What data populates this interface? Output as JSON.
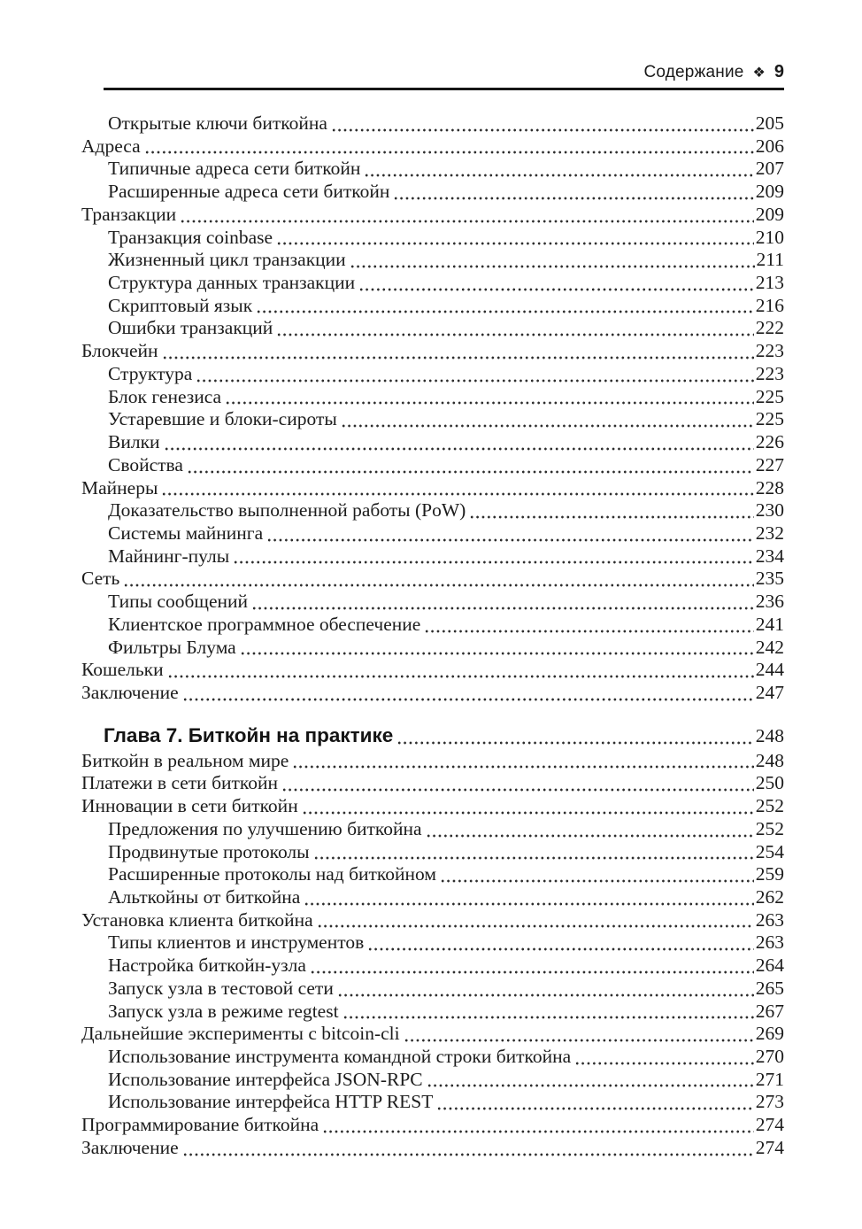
{
  "header": {
    "title": "Содержание",
    "separator_glyph": "❖",
    "page_number": "9"
  },
  "toc": {
    "entries": [
      {
        "label": "Открытые ключи биткойна",
        "page": "205",
        "level": 1,
        "style": "entry"
      },
      {
        "label": "Адреса",
        "page": "206",
        "level": 0,
        "style": "entry"
      },
      {
        "label": "Типичные адреса сети биткойн",
        "page": "207",
        "level": 1,
        "style": "entry"
      },
      {
        "label": "Расширенные адреса сети биткойн",
        "page": "209",
        "level": 1,
        "style": "entry"
      },
      {
        "label": "Транзакции",
        "page": "209",
        "level": 0,
        "style": "entry"
      },
      {
        "label": "Транзакция coinbase",
        "page": "210",
        "level": 1,
        "style": "entry"
      },
      {
        "label": "Жизненный цикл транзакции",
        "page": "211",
        "level": 1,
        "style": "entry"
      },
      {
        "label": "Структура данных транзакции",
        "page": "213",
        "level": 1,
        "style": "entry"
      },
      {
        "label": "Скриптовый язык",
        "page": "216",
        "level": 1,
        "style": "entry"
      },
      {
        "label": "Ошибки транзакций",
        "page": "222",
        "level": 1,
        "style": "entry"
      },
      {
        "label": "Блокчейн",
        "page": "223",
        "level": 0,
        "style": "entry"
      },
      {
        "label": "Структура",
        "page": "223",
        "level": 1,
        "style": "entry"
      },
      {
        "label": "Блок генезиса",
        "page": "225",
        "level": 1,
        "style": "entry"
      },
      {
        "label": "Устаревшие и блоки-сироты",
        "page": "225",
        "level": 1,
        "style": "entry"
      },
      {
        "label": "Вилки",
        "page": "226",
        "level": 1,
        "style": "entry"
      },
      {
        "label": "Свойства",
        "page": "227",
        "level": 1,
        "style": "entry"
      },
      {
        "label": "Майнеры",
        "page": "228",
        "level": 0,
        "style": "entry"
      },
      {
        "label": "Доказательство выполненной работы (PoW)",
        "page": "230",
        "level": 1,
        "style": "entry"
      },
      {
        "label": "Системы майнинга",
        "page": "232",
        "level": 1,
        "style": "entry"
      },
      {
        "label": "Майнинг-пулы",
        "page": "234",
        "level": 1,
        "style": "entry"
      },
      {
        "label": "Сеть",
        "page": "235",
        "level": 0,
        "style": "entry"
      },
      {
        "label": "Типы сообщений",
        "page": "236",
        "level": 1,
        "style": "entry"
      },
      {
        "label": "Клиентское программное обеспечение",
        "page": "241",
        "level": 1,
        "style": "entry"
      },
      {
        "label": "Фильтры Блума",
        "page": "242",
        "level": 1,
        "style": "entry"
      },
      {
        "label": "Кошельки",
        "page": "244",
        "level": 0,
        "style": "entry"
      },
      {
        "label": "Заключение",
        "page": "247",
        "level": 0,
        "style": "entry"
      },
      {
        "label": "Глава 7. Биткойн на практике",
        "page": "248",
        "level": 0,
        "style": "chapter"
      },
      {
        "label": "Биткойн в реальном мире",
        "page": "248",
        "level": 0,
        "style": "entry"
      },
      {
        "label": "Платежи в сети биткойн",
        "page": "250",
        "level": 0,
        "style": "entry"
      },
      {
        "label": "Инновации в сети биткойн",
        "page": "252",
        "level": 0,
        "style": "entry"
      },
      {
        "label": "Предложения по улучшению биткойна",
        "page": "252",
        "level": 1,
        "style": "entry"
      },
      {
        "label": "Продвинутые протоколы",
        "page": "254",
        "level": 1,
        "style": "entry"
      },
      {
        "label": "Расширенные протоколы над биткойном",
        "page": "259",
        "level": 1,
        "style": "entry"
      },
      {
        "label": "Альткойны от биткойна",
        "page": "262",
        "level": 1,
        "style": "entry"
      },
      {
        "label": "Установка клиента биткойна",
        "page": "263",
        "level": 0,
        "style": "entry"
      },
      {
        "label": "Типы клиентов и инструментов",
        "page": "263",
        "level": 1,
        "style": "entry"
      },
      {
        "label": "Настройка биткойн-узла",
        "page": "264",
        "level": 1,
        "style": "entry"
      },
      {
        "label": "Запуск узла в тестовой сети",
        "page": "265",
        "level": 1,
        "style": "entry"
      },
      {
        "label": "Запуск узла в режиме regtest",
        "page": "267",
        "level": 1,
        "style": "entry"
      },
      {
        "label": "Дальнейшие эксперименты с bitcoin-cli",
        "page": "269",
        "level": 0,
        "style": "entry"
      },
      {
        "label": "Использование инструмента командной строки биткойна",
        "page": "270",
        "level": 1,
        "style": "entry"
      },
      {
        "label": "Использование интерфейса JSON-RPC",
        "page": "271",
        "level": 1,
        "style": "entry"
      },
      {
        "label": "Использование интерфейса HTTP REST",
        "page": "273",
        "level": 1,
        "style": "entry"
      },
      {
        "label": "Программирование биткойна",
        "page": "274",
        "level": 0,
        "style": "entry"
      },
      {
        "label": "Заключение",
        "page": "274",
        "level": 0,
        "style": "entry"
      }
    ]
  }
}
